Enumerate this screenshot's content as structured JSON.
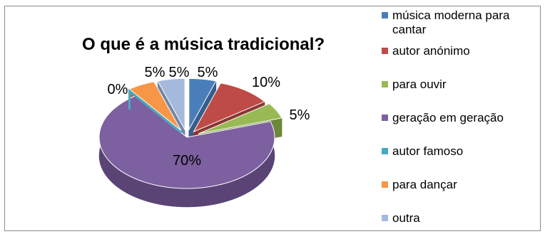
{
  "chart_data": {
    "type": "pie",
    "style": "3d-exploded",
    "title": "O que é a música tradicional?",
    "legend_position": "right",
    "slices": [
      {
        "label": "música moderna para cantar",
        "value": 5,
        "display": "5%",
        "color": "#4a7ebb",
        "side": "#365d8b"
      },
      {
        "label": "autor anónimo",
        "value": 10,
        "display": "10%",
        "color": "#be4b48",
        "side": "#8b3633"
      },
      {
        "label": "para ouvir",
        "value": 5,
        "display": "5%",
        "color": "#98b954",
        "side": "#6e873b"
      },
      {
        "label": "geração em geração",
        "value": 70,
        "display": "70%",
        "color": "#7d60a0",
        "side": "#5a4475"
      },
      {
        "label": "autor famoso",
        "value": 0,
        "display": "0%",
        "color": "#46aac5",
        "side": "#327d91"
      },
      {
        "label": "para dançar",
        "value": 5,
        "display": "5%",
        "color": "#f79646",
        "side": "#b46c31"
      },
      {
        "label": "outra",
        "value": 5,
        "display": "5%",
        "color": "#a5b9dc",
        "side": "#7687a5"
      }
    ]
  }
}
